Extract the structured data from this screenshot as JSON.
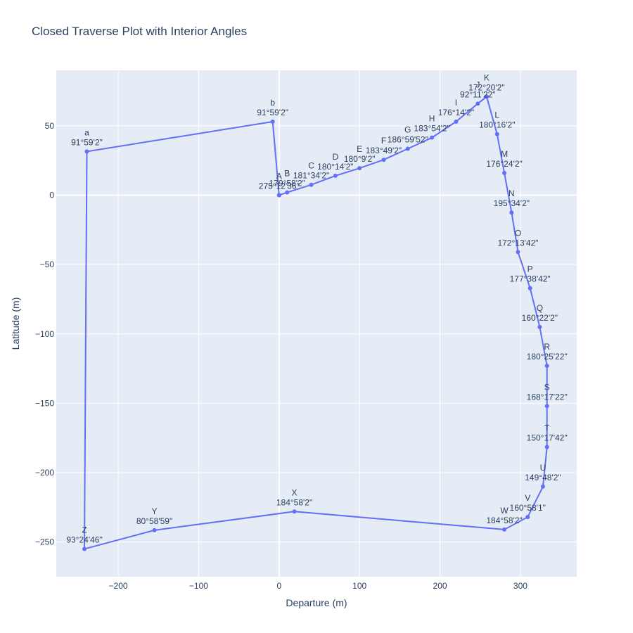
{
  "chart_data": {
    "type": "scatter",
    "mode": "lines+markers+text",
    "title": "Closed Traverse Plot with Interior Angles",
    "xlabel": "Departure (m)",
    "ylabel": "Latitude (m)",
    "xlim": [
      -277,
      370
    ],
    "ylim": [
      -275,
      90
    ],
    "xticks": [
      -200,
      -100,
      0,
      100,
      200,
      300
    ],
    "yticks": [
      50,
      0,
      -50,
      -100,
      -150,
      -200,
      -250
    ],
    "grid": true,
    "line_color": "#636efa",
    "background_color": "#e5ecf6",
    "points": [
      {
        "x": 0,
        "y": 0,
        "name": "A",
        "angle": "275°12'36\""
      },
      {
        "x": 10,
        "y": 2,
        "name": "B",
        "angle": "179°58'2\""
      },
      {
        "x": 40,
        "y": 7.5,
        "name": "C",
        "angle": "181°34'2\""
      },
      {
        "x": 70,
        "y": 14,
        "name": "D",
        "angle": "180°14'2\""
      },
      {
        "x": 100,
        "y": 19.5,
        "name": "E",
        "angle": "180°9'2\""
      },
      {
        "x": 130,
        "y": 25.5,
        "name": "F",
        "angle": "183°49'2\""
      },
      {
        "x": 160,
        "y": 33.5,
        "name": "G",
        "angle": "186°59'52\""
      },
      {
        "x": 190,
        "y": 41.5,
        "name": "H",
        "angle": "183°54'2\""
      },
      {
        "x": 220,
        "y": 53,
        "name": "I",
        "angle": "176°14'2\""
      },
      {
        "x": 247,
        "y": 66,
        "name": "J",
        "angle": "92°11'22\""
      },
      {
        "x": 258,
        "y": 71,
        "name": "K",
        "angle": "172°20'2\""
      },
      {
        "x": 271,
        "y": 44,
        "name": "L",
        "angle": "180°16'2\""
      },
      {
        "x": 280,
        "y": 16,
        "name": "M",
        "angle": "176°24'2\""
      },
      {
        "x": 289,
        "y": -12.5,
        "name": "N",
        "angle": "195°34'2\""
      },
      {
        "x": 297,
        "y": -41,
        "name": "O",
        "angle": "172°13'42\""
      },
      {
        "x": 312,
        "y": -67,
        "name": "P",
        "angle": "177°38'42\""
      },
      {
        "x": 324,
        "y": -95,
        "name": "Q",
        "angle": "160°22'2\""
      },
      {
        "x": 333,
        "y": -123,
        "name": "R",
        "angle": "180°25'22\""
      },
      {
        "x": 333,
        "y": -152,
        "name": "S",
        "angle": "168°17'22\""
      },
      {
        "x": 333,
        "y": -181.5,
        "name": "T",
        "angle": "150°17'42\""
      },
      {
        "x": 328,
        "y": -210,
        "name": "U",
        "angle": "149°48'2\""
      },
      {
        "x": 309,
        "y": -232,
        "name": "V",
        "angle": "160°58'1\""
      },
      {
        "x": 280,
        "y": -241,
        "name": "W",
        "angle": "184°58'2\""
      },
      {
        "x": 19,
        "y": -228,
        "name": "X",
        "angle": "184°58'2\""
      },
      {
        "x": -155,
        "y": -241.5,
        "name": "Y",
        "angle": "80°58'59\""
      },
      {
        "x": -242,
        "y": -255,
        "name": "Z",
        "angle": "93°24'46\""
      },
      {
        "x": -239,
        "y": 31.5,
        "name": "a",
        "angle": "91°59'2\""
      },
      {
        "x": -8,
        "y": 53,
        "name": "b",
        "angle": "91°59'2\""
      },
      {
        "x": 0,
        "y": 0,
        "name": "",
        "angle": ""
      }
    ]
  }
}
